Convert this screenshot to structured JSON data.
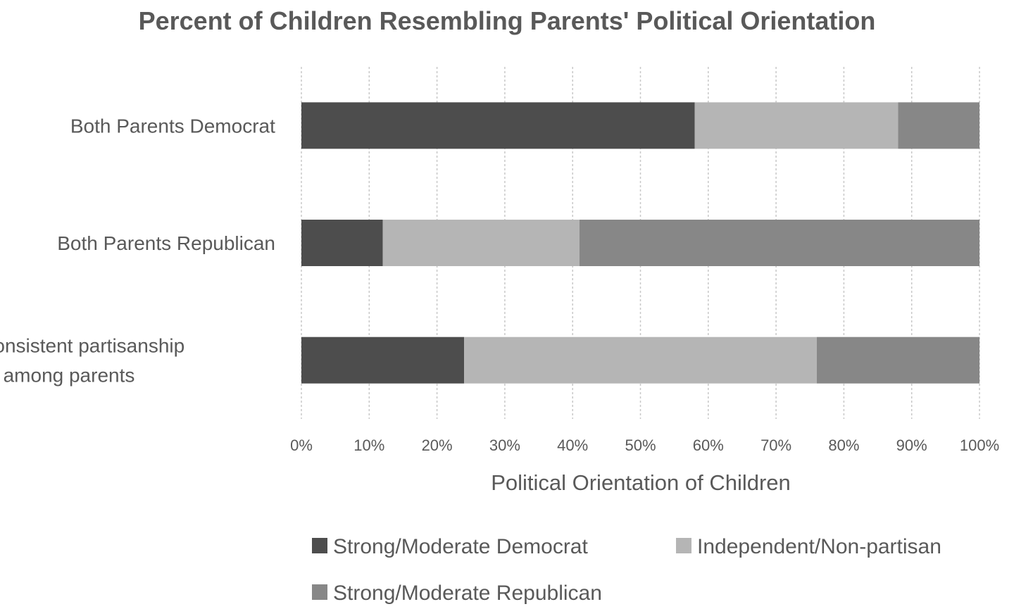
{
  "chart_data": {
    "type": "bar",
    "orientation": "horizontal",
    "stacked": "percent",
    "title": "Percent of Children Resembling Parents' Political Orientation",
    "xlabel": "Political Orientation of Children",
    "ylabel": "",
    "xlim": [
      0,
      100
    ],
    "x_ticks": [
      "0%",
      "10%",
      "20%",
      "30%",
      "40%",
      "50%",
      "60%",
      "70%",
      "80%",
      "90%",
      "100%"
    ],
    "categories": [
      [
        "Both Parents Democrat"
      ],
      [
        "Both Parents Republican"
      ],
      [
        "No consistent partisanship",
        "among parents"
      ]
    ],
    "series": [
      {
        "name": "Strong/Moderate Democrat",
        "color": "#4d4d4d",
        "values": [
          58,
          12,
          24
        ]
      },
      {
        "name": "Independent/Non-partisan",
        "color": "#b5b5b5",
        "values": [
          30,
          29,
          52
        ]
      },
      {
        "name": "Strong/Moderate Republican",
        "color": "#878787",
        "values": [
          12,
          59,
          24
        ]
      }
    ],
    "grid": "vertical-dashed",
    "legend_position": "bottom"
  }
}
